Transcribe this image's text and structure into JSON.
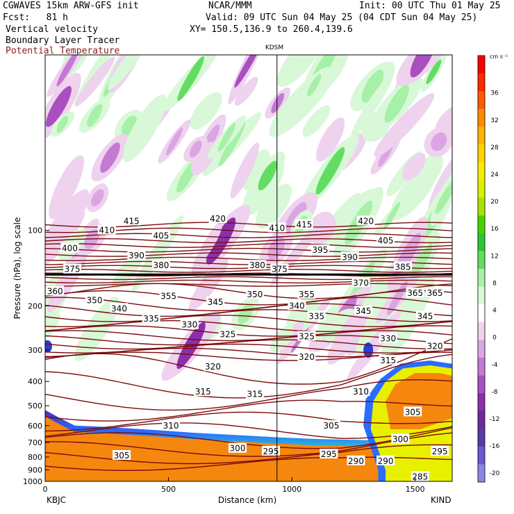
{
  "header": {
    "model": "CGWAVES 15km ARW-GFS init",
    "center": "NCAR/MMM",
    "init": "Init: 00 UTC Thu 01 May 25",
    "fcst": "Fcst:   81 h",
    "valid": "Valid: 09 UTC Sun 04 May 25 (04 CDT Sun 04 May 25)",
    "field1": "Vertical velocity",
    "field2": "Boundary Layer Tracer",
    "field3": "Potential Temperature",
    "xy": "XY= 150.5,136.9 to 260.4,139.6",
    "marker": "KDSM",
    "left_station": "KBJC",
    "right_station": "KIND"
  },
  "colors": {
    "theta": "#7a0a0a",
    "field3_text": "#8b1a1a",
    "tracer_orange": "#f5870f",
    "frame": "#000000"
  },
  "chart_data": {
    "type": "heatmap",
    "title": "Vertical velocity / Boundary Layer Tracer / Potential Temperature",
    "xlabel": "Distance (km)",
    "ylabel": "Pressure (hPa), log scale",
    "x_range": [
      0,
      1650
    ],
    "y_range": [
      1000,
      20
    ],
    "y_scale": "log",
    "x_ticks": [
      0,
      500,
      1000,
      1500
    ],
    "x_tick_labels": [
      "0",
      "500",
      "1000",
      "1500"
    ],
    "y_ticks": [
      100,
      200,
      300,
      400,
      500,
      600,
      700,
      800,
      900,
      1000
    ],
    "y_tick_labels": [
      "100",
      "200",
      "300",
      "400",
      "500",
      "600",
      "700",
      "800",
      "900",
      "1000"
    ],
    "marker_x": 940,
    "colorbar": {
      "unit": "cm s⁻¹",
      "levels": [
        36,
        32,
        28,
        24,
        20,
        16,
        12,
        8,
        4,
        0,
        -4,
        -8,
        -12,
        -16,
        -20
      ],
      "colors": [
        "#ff0000",
        "#ff2a00",
        "#ff5a00",
        "#ff8a00",
        "#ffb300",
        "#ffd200",
        "#f5ee00",
        "#dcf000",
        "#a8e400",
        "#46d400",
        "#2fc62f",
        "#62dd62",
        "#a7f0a7",
        "#d8f8d8",
        "#ffffff",
        "#eed2ee",
        "#dba5e4",
        "#c27ad2",
        "#a94fc0",
        "#8b2fad",
        "#6f2a9c",
        "#5a3aa8",
        "#6a5ad0",
        "#8a85e6"
      ]
    },
    "theta_labels": [
      {
        "v": "420",
        "x": 700,
        "p": 90
      },
      {
        "v": "415",
        "x": 350,
        "p": 92
      },
      {
        "v": "410",
        "x": 250,
        "p": 100
      },
      {
        "v": "405",
        "x": 470,
        "p": 105
      },
      {
        "v": "400",
        "x": 100,
        "p": 118
      },
      {
        "v": "390",
        "x": 370,
        "p": 126
      },
      {
        "v": "380",
        "x": 470,
        "p": 138
      },
      {
        "v": "375",
        "x": 110,
        "p": 143
      },
      {
        "v": "360",
        "x": 40,
        "p": 175
      },
      {
        "v": "350",
        "x": 200,
        "p": 190
      },
      {
        "v": "355",
        "x": 500,
        "p": 183
      },
      {
        "v": "345",
        "x": 690,
        "p": 193
      },
      {
        "v": "340",
        "x": 300,
        "p": 205
      },
      {
        "v": "335",
        "x": 430,
        "p": 225
      },
      {
        "v": "330",
        "x": 585,
        "p": 238
      },
      {
        "v": "325",
        "x": 740,
        "p": 260
      },
      {
        "v": "320",
        "x": 680,
        "p": 350
      },
      {
        "v": "315",
        "x": 640,
        "p": 440
      },
      {
        "v": "310",
        "x": 510,
        "p": 600
      },
      {
        "v": "305",
        "x": 310,
        "p": 790
      },
      {
        "v": "300",
        "x": 780,
        "p": 740
      },
      {
        "v": "295",
        "x": 915,
        "p": 760
      },
      {
        "v": "420",
        "x": 1300,
        "p": 92
      },
      {
        "v": "415",
        "x": 1050,
        "p": 95
      },
      {
        "v": "410",
        "x": 940,
        "p": 98
      },
      {
        "v": "405",
        "x": 1380,
        "p": 110
      },
      {
        "v": "395",
        "x": 1115,
        "p": 120
      },
      {
        "v": "390",
        "x": 1235,
        "p": 128
      },
      {
        "v": "385",
        "x": 1450,
        "p": 140
      },
      {
        "v": "380",
        "x": 860,
        "p": 138
      },
      {
        "v": "375",
        "x": 950,
        "p": 143
      },
      {
        "v": "370",
        "x": 1280,
        "p": 162
      },
      {
        "v": "365",
        "x": 1500,
        "p": 178
      },
      {
        "v": "365",
        "x": 1580,
        "p": 178
      },
      {
        "v": "355",
        "x": 1060,
        "p": 180
      },
      {
        "v": "350",
        "x": 850,
        "p": 180
      },
      {
        "v": "340",
        "x": 1020,
        "p": 200
      },
      {
        "v": "345",
        "x": 1290,
        "p": 210
      },
      {
        "v": "345",
        "x": 1540,
        "p": 220
      },
      {
        "v": "335",
        "x": 1100,
        "p": 220
      },
      {
        "v": "330",
        "x": 1390,
        "p": 270
      },
      {
        "v": "325",
        "x": 1060,
        "p": 265
      },
      {
        "v": "320",
        "x": 1060,
        "p": 320
      },
      {
        "v": "320",
        "x": 1580,
        "p": 290
      },
      {
        "v": "315",
        "x": 850,
        "p": 450
      },
      {
        "v": "315",
        "x": 1390,
        "p": 330
      },
      {
        "v": "310",
        "x": 1280,
        "p": 440
      },
      {
        "v": "305",
        "x": 1160,
        "p": 600
      },
      {
        "v": "305",
        "x": 1490,
        "p": 530
      },
      {
        "v": "300",
        "x": 1440,
        "p": 680
      },
      {
        "v": "295",
        "x": 1150,
        "p": 780
      },
      {
        "v": "295",
        "x": 1600,
        "p": 760
      },
      {
        "v": "290",
        "x": 1260,
        "p": 830
      },
      {
        "v": "290",
        "x": 1380,
        "p": 830
      },
      {
        "v": "285",
        "x": 1520,
        "p": 960
      }
    ]
  }
}
